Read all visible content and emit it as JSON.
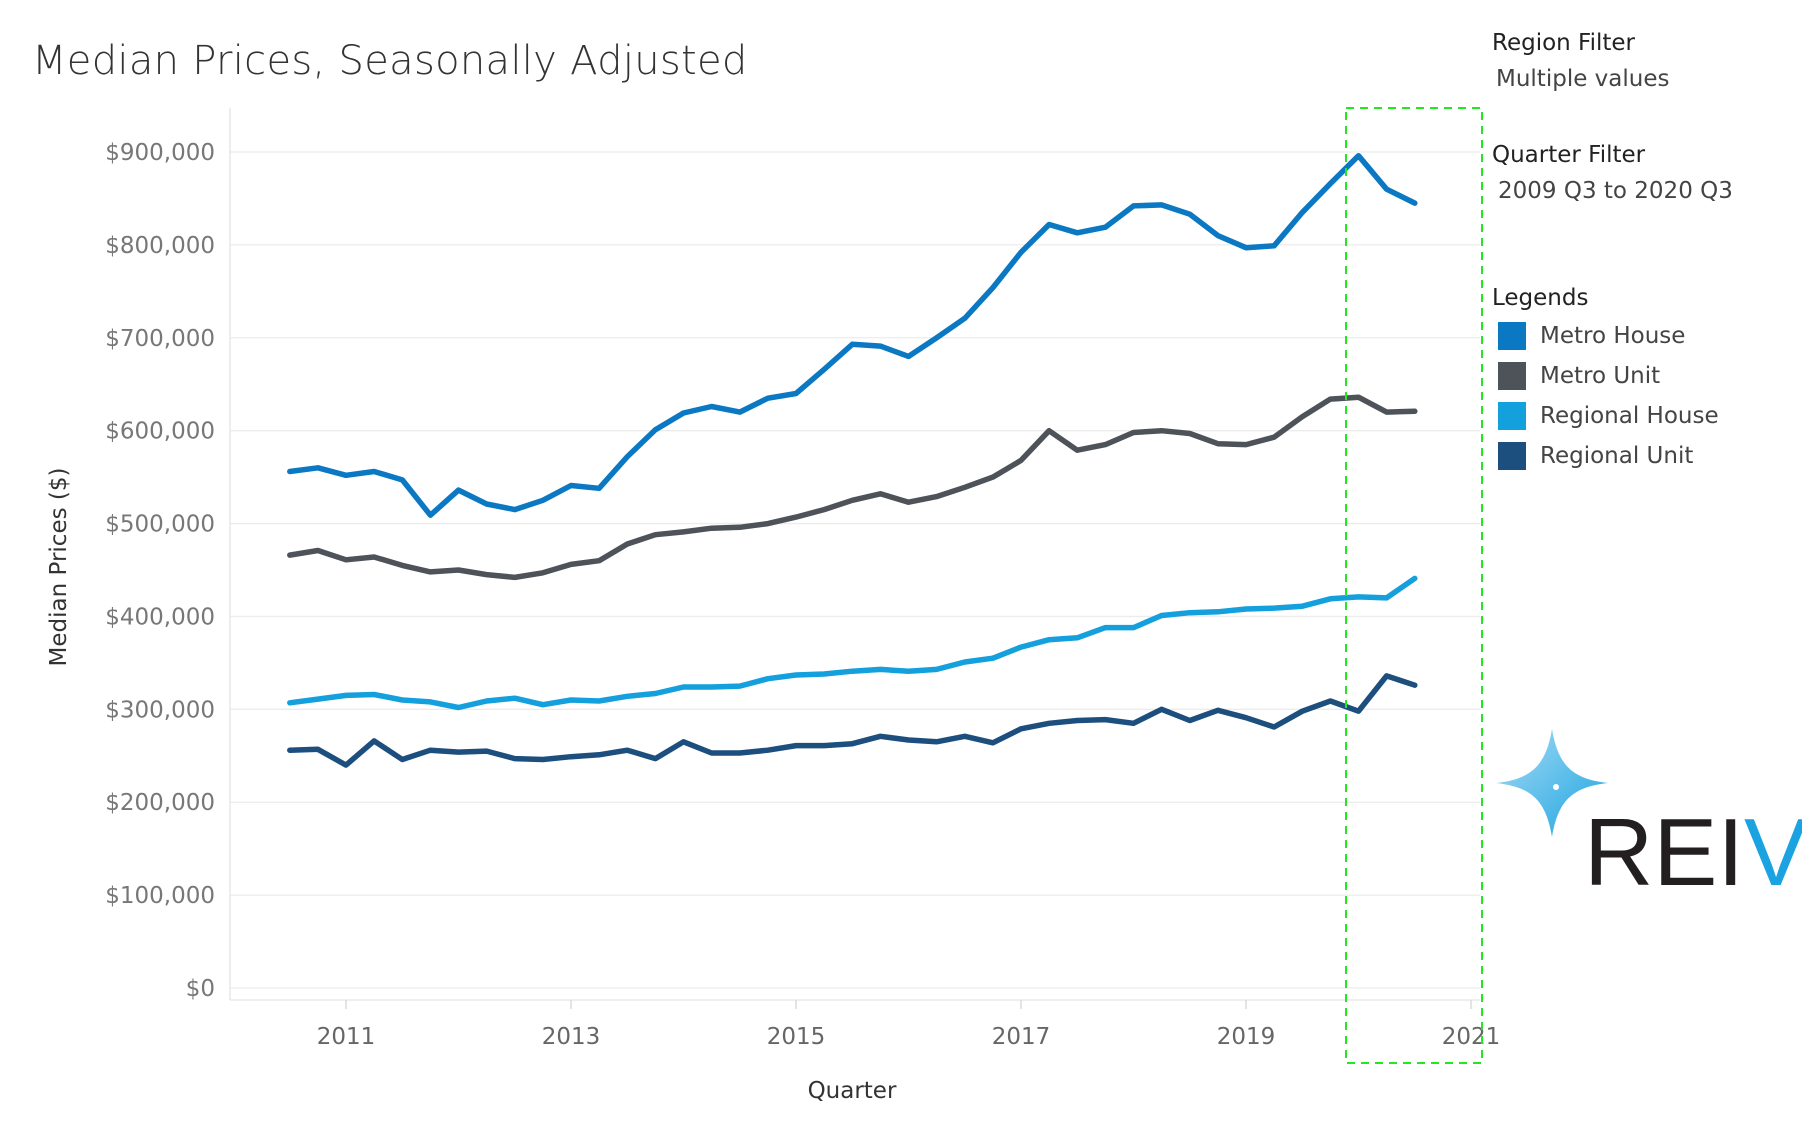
{
  "title": "Median Prices, Seasonally Adjusted",
  "filters": {
    "region_heading": "Region Filter",
    "region_value": "Multiple values",
    "quarter_heading": "Quarter Filter",
    "quarter_value": "2009 Q3 to 2020 Q3"
  },
  "legend_heading": "Legends",
  "logo_text": "REIV",
  "chart_data": {
    "type": "line",
    "title": "Median Prices, Seasonally Adjusted",
    "xlabel": "Quarter",
    "ylabel": "Median Prices ($)",
    "ylim": [
      0,
      900000
    ],
    "xlim": [
      2010.0,
      2021.25
    ],
    "y_ticks": [
      0,
      100000,
      200000,
      300000,
      400000,
      500000,
      600000,
      700000,
      800000,
      900000
    ],
    "y_tick_labels": [
      "$0",
      "$100,000",
      "$200,000",
      "$300,000",
      "$400,000",
      "$500,000",
      "$600,000",
      "$700,000",
      "$800,000",
      "$900,000"
    ],
    "x_ticks": [
      2011,
      2013,
      2015,
      2017,
      2019,
      2021
    ],
    "x_tick_labels": [
      "2011",
      "2013",
      "2015",
      "2017",
      "2019",
      "2021"
    ],
    "grid": true,
    "legend_position": "right",
    "x": [
      2010.5,
      2010.75,
      2011.0,
      2011.25,
      2011.5,
      2011.75,
      2012.0,
      2012.25,
      2012.5,
      2012.75,
      2013.0,
      2013.25,
      2013.5,
      2013.75,
      2014.0,
      2014.25,
      2014.5,
      2014.75,
      2015.0,
      2015.25,
      2015.5,
      2015.75,
      2016.0,
      2016.25,
      2016.5,
      2016.75,
      2017.0,
      2017.25,
      2017.5,
      2017.75,
      2018.0,
      2018.25,
      2018.5,
      2018.75,
      2019.0,
      2019.25,
      2019.5,
      2019.75,
      2020.0,
      2020.25,
      2020.5
    ],
    "series": [
      {
        "name": "Metro House",
        "color": "#0a78c2",
        "values": [
          556000,
          560000,
          552000,
          556000,
          547000,
          509000,
          536000,
          521000,
          515000,
          525000,
          541000,
          538000,
          572000,
          601000,
          619000,
          626000,
          620000,
          635000,
          640000,
          666000,
          693000,
          691000,
          680000,
          700000,
          721000,
          754000,
          792000,
          822000,
          813000,
          819000,
          842000,
          843000,
          833000,
          810000,
          797000,
          799000,
          835000,
          866000,
          896000,
          860000,
          845000
        ]
      },
      {
        "name": "Metro Unit",
        "color": "#4d5359",
        "values": [
          466000,
          471000,
          461000,
          464000,
          455000,
          448000,
          450000,
          445000,
          442000,
          447000,
          456000,
          460000,
          478000,
          488000,
          491000,
          495000,
          496000,
          500000,
          507000,
          515000,
          525000,
          532000,
          523000,
          529000,
          539000,
          550000,
          568000,
          600000,
          579000,
          585000,
          598000,
          600000,
          597000,
          586000,
          585000,
          593000,
          615000,
          634000,
          636000,
          620000,
          621000
        ]
      },
      {
        "name": "Regional House",
        "color": "#14a0dc",
        "values": [
          307000,
          311000,
          315000,
          316000,
          310000,
          308000,
          302000,
          309000,
          312000,
          305000,
          310000,
          309000,
          314000,
          317000,
          324000,
          324000,
          325000,
          333000,
          337000,
          338000,
          341000,
          343000,
          341000,
          343000,
          351000,
          355000,
          367000,
          375000,
          377000,
          388000,
          388000,
          401000,
          404000,
          405000,
          408000,
          409000,
          411000,
          419000,
          421000,
          420000,
          441000
        ]
      },
      {
        "name": "Regional Unit",
        "color": "#1c4e7e",
        "values": [
          256000,
          257000,
          240000,
          266000,
          246000,
          256000,
          254000,
          255000,
          247000,
          246000,
          249000,
          251000,
          256000,
          247000,
          265000,
          253000,
          253000,
          256000,
          261000,
          261000,
          263000,
          271000,
          267000,
          265000,
          271000,
          264000,
          279000,
          285000,
          288000,
          289000,
          285000,
          300000,
          288000,
          299000,
          291000,
          281000,
          298000,
          309000,
          298000,
          336000,
          326000
        ]
      }
    ]
  }
}
